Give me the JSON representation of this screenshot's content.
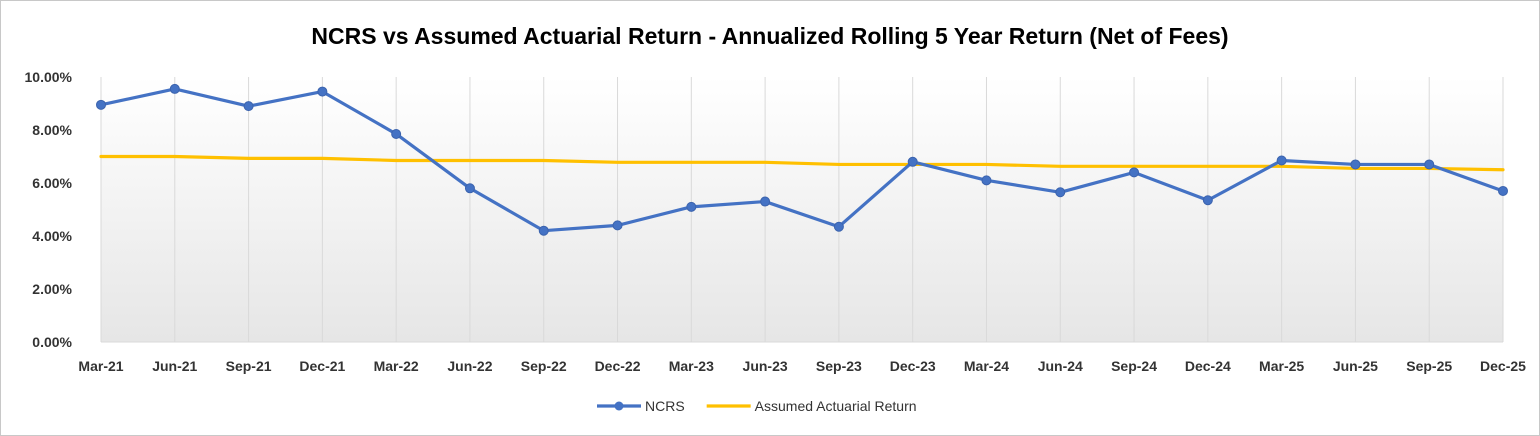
{
  "chart_data": {
    "type": "line",
    "title": "NCRS vs Assumed Actuarial Return - Annualized Rolling 5 Year Return (Net of Fees)",
    "xlabel": "",
    "ylabel": "",
    "categories": [
      "Mar-21",
      "Jun-21",
      "Sep-21",
      "Dec-21",
      "Mar-22",
      "Jun-22",
      "Sep-22",
      "Dec-22",
      "Mar-23",
      "Jun-23",
      "Sep-23",
      "Dec-23",
      "Mar-24",
      "Jun-24",
      "Sep-24",
      "Dec-24",
      "Mar-25",
      "Jun-25",
      "Sep-25",
      "Dec-25"
    ],
    "ylim": [
      0,
      10
    ],
    "yticks": [
      0,
      2,
      4,
      6,
      8,
      10
    ],
    "ytick_labels": [
      "0.00%",
      "2.00%",
      "4.00%",
      "6.00%",
      "8.00%",
      "10.00%"
    ],
    "grid": "vertical",
    "legend_position": "bottom-center",
    "series": [
      {
        "name": "NCRS",
        "color": "#4472c4",
        "marker": true,
        "values": [
          8.95,
          9.55,
          8.9,
          9.45,
          7.85,
          5.8,
          4.2,
          4.4,
          5.1,
          5.3,
          4.35,
          6.8,
          6.1,
          5.65,
          6.4,
          5.35,
          6.85,
          6.7,
          6.7,
          5.7
        ]
      },
      {
        "name": "Assumed Actuarial Return",
        "color": "#ffc000",
        "marker": false,
        "values": [
          7.0,
          7.0,
          6.93,
          6.93,
          6.85,
          6.85,
          6.85,
          6.78,
          6.78,
          6.78,
          6.7,
          6.7,
          6.7,
          6.63,
          6.63,
          6.63,
          6.63,
          6.55,
          6.55,
          6.5
        ]
      }
    ]
  }
}
